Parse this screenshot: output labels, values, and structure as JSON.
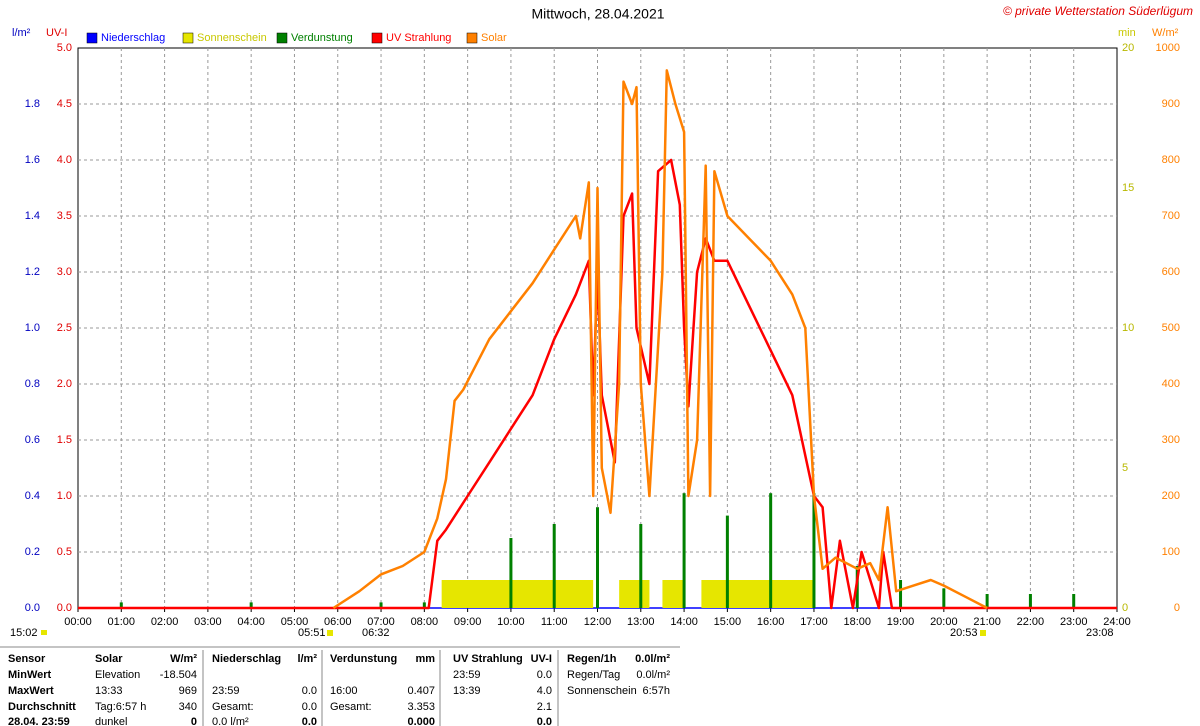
{
  "chart_data": {
    "type": "line",
    "title": "Mittwoch, 28.04.2021",
    "copyright": "© private Wetterstation Süderlügum",
    "axis_labels": {
      "y": "l/m²",
      "uv": "UV-I",
      "y2": "min",
      "y3": "W/m²"
    },
    "grid": true,
    "xlim": [
      0,
      24
    ],
    "xticks": [
      {
        "value": 0,
        "label": "00:00"
      },
      {
        "value": 1,
        "label": "01:00"
      },
      {
        "value": 2,
        "label": "02:00"
      },
      {
        "value": 3,
        "label": "03:00"
      },
      {
        "value": 4,
        "label": "04:00"
      },
      {
        "value": 5,
        "label": "05:00"
      },
      {
        "value": 6,
        "label": "06:00"
      },
      {
        "value": 7,
        "label": "07:00"
      },
      {
        "value": 8,
        "label": "08:00"
      },
      {
        "value": 9,
        "label": "09:00"
      },
      {
        "value": 10,
        "label": "10:00"
      },
      {
        "value": 11,
        "label": "11:00"
      },
      {
        "value": 12,
        "label": "12:00"
      },
      {
        "value": 13,
        "label": "13:00"
      },
      {
        "value": 14,
        "label": "14:00"
      },
      {
        "value": 15,
        "label": "15:00"
      },
      {
        "value": 16,
        "label": "16:00"
      },
      {
        "value": 17,
        "label": "17:00"
      },
      {
        "value": 18,
        "label": "18:00"
      },
      {
        "value": 19,
        "label": "19:00"
      },
      {
        "value": 20,
        "label": "20:00"
      },
      {
        "value": 21,
        "label": "21:00"
      },
      {
        "value": 22,
        "label": "22:00"
      },
      {
        "value": 23,
        "label": "23:00"
      },
      {
        "value": 24,
        "label": "24:00"
      }
    ],
    "ylim": [
      0,
      2
    ],
    "yticks": [
      {
        "value": 0,
        "label": "0.0"
      },
      {
        "value": 0.2,
        "label": "0.2"
      },
      {
        "value": 0.4,
        "label": "0.4"
      },
      {
        "value": 0.6,
        "label": "0.6"
      },
      {
        "value": 0.8,
        "label": "0.8"
      },
      {
        "value": 1,
        "label": "1.0"
      },
      {
        "value": 1.2,
        "label": "1.2"
      },
      {
        "value": 1.4,
        "label": "1.4"
      },
      {
        "value": 1.6,
        "label": "1.6"
      },
      {
        "value": 1.8,
        "label": "1.8"
      }
    ],
    "uvlim": [
      0,
      5
    ],
    "uvticks": [
      {
        "value": 0,
        "label": "0.0"
      },
      {
        "value": 0.5,
        "label": "0.5"
      },
      {
        "value": 1,
        "label": "1.0"
      },
      {
        "value": 1.5,
        "label": "1.5"
      },
      {
        "value": 2,
        "label": "2.0"
      },
      {
        "value": 2.5,
        "label": "2.5"
      },
      {
        "value": 3,
        "label": "3.0"
      },
      {
        "value": 3.5,
        "label": "3.5"
      },
      {
        "value": 4,
        "label": "4.0"
      },
      {
        "value": 4.5,
        "label": "4.5"
      },
      {
        "value": 5,
        "label": "5.0"
      }
    ],
    "y2lim": [
      0,
      20
    ],
    "y2ticks": [
      0,
      5,
      10,
      15,
      20
    ],
    "y3lim": [
      0,
      1000
    ],
    "y3ticks": [
      0,
      100,
      200,
      300,
      400,
      500,
      600,
      700,
      800,
      900,
      1000
    ],
    "series": [
      {
        "name": "Niederschlag",
        "color": "#0000ff",
        "kind": "line",
        "axis": "y",
        "x": [
          0,
          24
        ],
        "values": [
          0,
          0
        ]
      },
      {
        "name": "Sonnenschein",
        "color": "#e6e600",
        "kind": "span",
        "axis": "y2",
        "x_start": [
          8.4,
          12.5,
          13.5,
          14.4
        ],
        "x_end": [
          11.9,
          13.2,
          14.0,
          17.0
        ],
        "values": [
          1,
          1,
          1,
          1
        ]
      },
      {
        "name": "Verdunstung",
        "color": "#008000",
        "kind": "bar",
        "axis": "y",
        "x": [
          1,
          4,
          7,
          8,
          10,
          11,
          12,
          13,
          14,
          15,
          16,
          17,
          18,
          19,
          20,
          21,
          22,
          23
        ],
        "values": [
          0.02,
          0.02,
          0.02,
          0.02,
          0.25,
          0.3,
          0.36,
          0.3,
          0.41,
          0.33,
          0.41,
          0.41,
          0.15,
          0.1,
          0.07,
          0.05,
          0.05,
          0.05
        ]
      },
      {
        "name": "UV Strahlung",
        "color": "#ff0000",
        "kind": "line",
        "axis": "uv",
        "x": [
          0,
          8.1,
          8.3,
          8.5,
          9.0,
          9.5,
          10.0,
          10.5,
          11.0,
          11.5,
          11.8,
          11.9,
          12.0,
          12.1,
          12.4,
          12.6,
          12.8,
          12.9,
          13.2,
          13.4,
          13.7,
          13.9,
          14.0,
          14.1,
          14.3,
          14.5,
          14.7,
          15.0,
          15.5,
          16.0,
          16.5,
          17.0,
          17.2,
          17.4,
          17.6,
          17.9,
          18.1,
          18.5,
          18.6,
          18.8,
          24
        ],
        "values": [
          0,
          0,
          0.6,
          0.7,
          1.0,
          1.3,
          1.6,
          1.9,
          2.4,
          2.8,
          3.1,
          1.9,
          3.0,
          1.9,
          1.3,
          3.5,
          3.7,
          2.5,
          2.0,
          3.9,
          4.0,
          3.6,
          2.5,
          1.8,
          3.0,
          3.3,
          3.1,
          3.1,
          2.7,
          2.3,
          1.9,
          1.0,
          0.9,
          0,
          0.6,
          0,
          0.5,
          0,
          0.5,
          0,
          0
        ]
      },
      {
        "name": "Solar",
        "color": "#ff8000",
        "kind": "line",
        "axis": "y3",
        "x": [
          5.9,
          6.5,
          7.0,
          7.5,
          8.0,
          8.3,
          8.5,
          8.7,
          8.9,
          9.5,
          10.0,
          10.5,
          11.0,
          11.5,
          11.6,
          11.8,
          11.9,
          12.0,
          12.1,
          12.3,
          12.5,
          12.6,
          12.8,
          12.9,
          13.0,
          13.2,
          13.5,
          13.6,
          13.8,
          14.0,
          14.1,
          14.3,
          14.5,
          14.6,
          14.7,
          15.0,
          15.5,
          16.0,
          16.5,
          16.8,
          17.0,
          17.2,
          17.5,
          18.0,
          18.3,
          18.5,
          18.7,
          18.9,
          19.3,
          19.7,
          20.0,
          20.5,
          21.0
        ],
        "values": [
          0,
          30,
          60,
          75,
          100,
          160,
          230,
          370,
          390,
          480,
          530,
          580,
          640,
          700,
          660,
          760,
          200,
          750,
          250,
          170,
          400,
          940,
          900,
          930,
          400,
          200,
          600,
          960,
          900,
          850,
          200,
          300,
          790,
          200,
          780,
          700,
          660,
          620,
          560,
          500,
          200,
          70,
          90,
          70,
          80,
          50,
          180,
          30,
          40,
          50,
          40,
          20,
          0
        ]
      }
    ]
  },
  "sun_times": {
    "moon": "15:02",
    "sunrise": "05:51",
    "civil": "06:32",
    "sunset": "20:53",
    "moonset": "23:08"
  },
  "stats": {
    "rows": [
      [
        "Sensor",
        "Solar",
        "W/m²",
        "Niederschlag",
        "l/m²",
        "Verdunstung",
        "mm",
        "UV Strahlung",
        "UV-I",
        "Regen/1h",
        "0.0l/m²"
      ],
      [
        "MinWert",
        "Elevation",
        "-18.504",
        null,
        null,
        null,
        null,
        "23:59",
        "0.0",
        "Regen/Tag",
        "0.0l/m²"
      ],
      [
        "MaxWert",
        "13:33",
        "969",
        "23:59",
        "0.0",
        "16:00",
        "0.407",
        "13:39",
        "4.0",
        "Sonnenschein",
        "6:57h"
      ],
      [
        "Durchschnitt",
        "Tag:6:57 h",
        "340",
        "Gesamt:",
        "0.0",
        "Gesamt:",
        "3.353",
        null,
        "2.1",
        null,
        null
      ],
      [
        "28.04. 23:59",
        "dunkel",
        "0",
        "0.0 l/m²",
        "0.0",
        null,
        "0.000",
        null,
        "0.0",
        null,
        null
      ]
    ]
  }
}
